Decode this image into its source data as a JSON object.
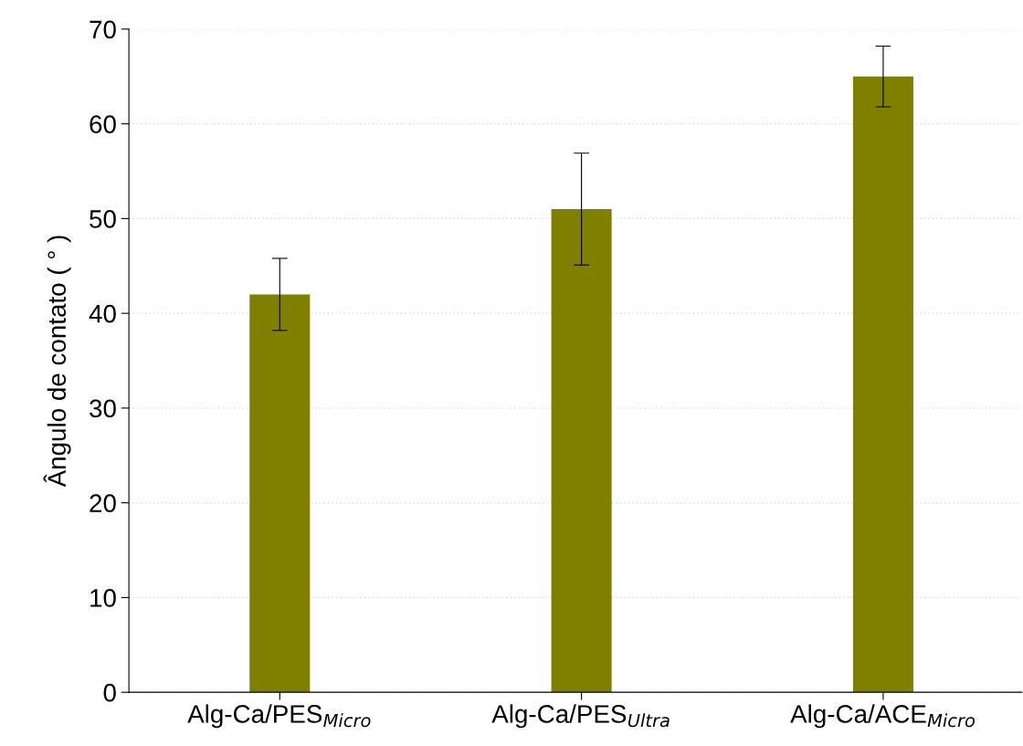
{
  "chart_data": {
    "type": "bar",
    "ylabel": "Ângulo de contato ( ° )",
    "categories": [
      "Alg-Ca/PES$_{Micro}$",
      "Alg-Ca/PES$_{Ultra}$",
      "Alg-Ca/ACE$_{Micro}$"
    ],
    "values": [
      42,
      51,
      65
    ],
    "errors": [
      3.8,
      5.9,
      3.2
    ],
    "color": "#808000",
    "ylim": [
      0,
      70
    ],
    "yticks": [
      0,
      10,
      20,
      30,
      40,
      50,
      60,
      70
    ],
    "grid": "y"
  }
}
